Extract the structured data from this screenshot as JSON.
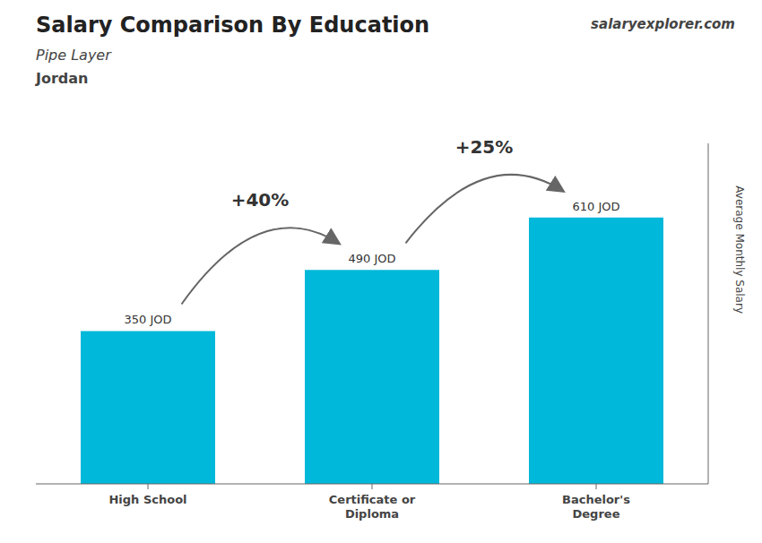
{
  "chart_data": {
    "type": "bar",
    "title": "Salary Comparison By Education",
    "subtitle": [
      "Pipe Layer",
      "Jordan"
    ],
    "ylabel": "Average Monthly Salary",
    "categories": [
      "High School",
      "Certificate or\nDiploma",
      "Bachelor's\nDegree"
    ],
    "values": [
      350,
      490,
      610
    ],
    "value_labels": [
      "350 JOD",
      "490 JOD",
      "610 JOD"
    ],
    "color": "#00b8d9",
    "ylim": [
      0,
      780
    ],
    "data_labels": true,
    "tick_labels": "x",
    "annotations": [
      "+40%",
      "+25%"
    ],
    "source": "salaryexplorer.com"
  }
}
